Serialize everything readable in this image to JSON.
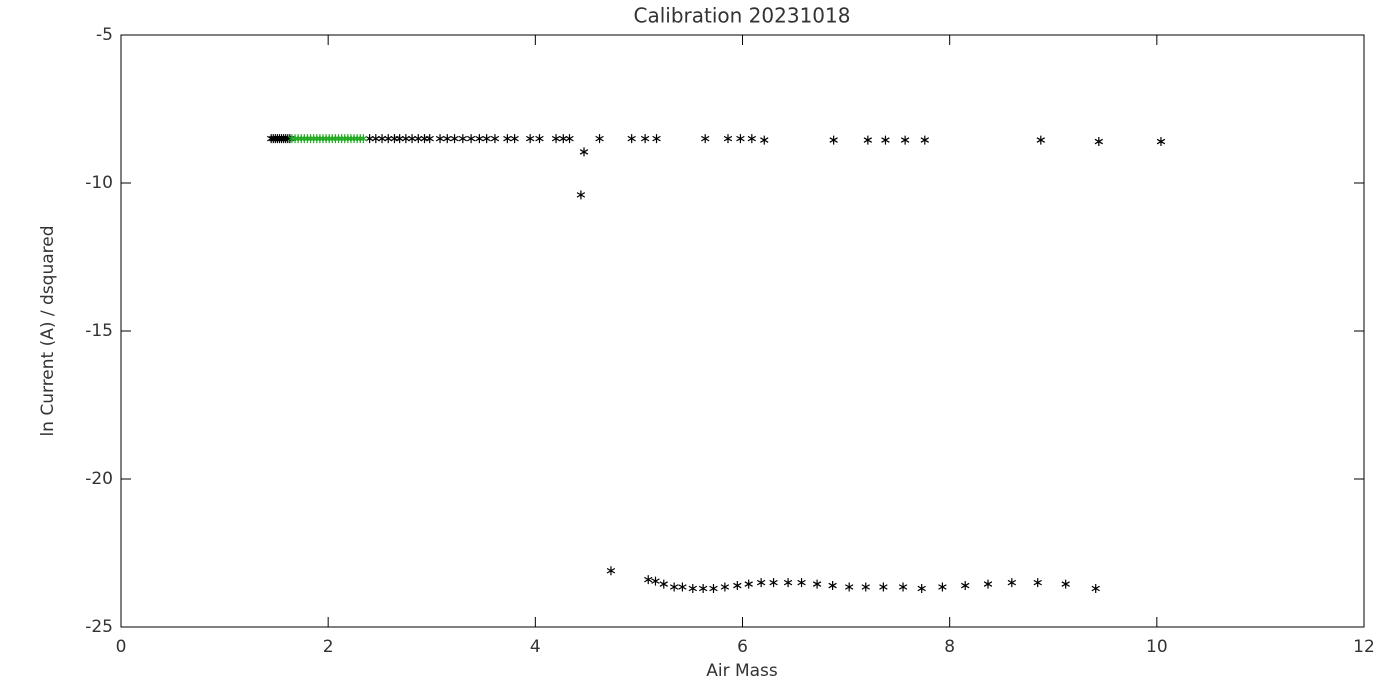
{
  "chart_data": {
    "type": "scatter",
    "title": "Calibration 20231018",
    "x_label": "Air Mass",
    "y_label": "ln Current (A) / dsquared",
    "xlim": [
      0,
      12
    ],
    "xticks": [
      0,
      2,
      4,
      6,
      8,
      10,
      12
    ],
    "ylim": [
      -25,
      -5
    ],
    "yticks": [
      -25,
      -20,
      -15,
      -10,
      -5
    ],
    "marker": "asterisk",
    "series": [
      {
        "color": "#000000",
        "x": [
          1.45,
          1.47,
          1.49,
          1.51,
          1.53,
          1.55,
          1.57,
          1.59,
          1.61,
          1.63,
          2.4,
          2.46,
          2.52,
          2.58,
          2.64,
          2.69,
          2.75,
          2.81,
          2.87,
          2.93,
          2.98,
          3.08,
          3.15,
          3.22,
          3.3,
          3.38,
          3.46,
          3.53,
          3.61,
          3.73,
          3.8,
          3.95,
          4.04,
          4.2,
          4.27,
          4.33,
          4.44,
          4.47,
          4.62,
          4.93,
          5.06,
          5.17,
          5.64,
          5.86,
          5.98,
          6.09,
          6.21,
          6.88,
          7.21,
          7.38,
          7.57,
          7.76,
          8.88,
          9.44,
          10.04
        ],
        "values": [
          -8.5,
          -8.5,
          -8.5,
          -8.5,
          -8.5,
          -8.5,
          -8.5,
          -8.5,
          -8.5,
          -8.5,
          -8.5,
          -8.5,
          -8.5,
          -8.5,
          -8.5,
          -8.5,
          -8.5,
          -8.5,
          -8.5,
          -8.5,
          -8.5,
          -8.5,
          -8.5,
          -8.5,
          -8.5,
          -8.5,
          -8.5,
          -8.5,
          -8.5,
          -8.5,
          -8.5,
          -8.5,
          -8.5,
          -8.5,
          -8.5,
          -8.5,
          -10.4,
          -8.95,
          -8.5,
          -8.5,
          -8.5,
          -8.5,
          -8.5,
          -8.5,
          -8.5,
          -8.5,
          -8.55,
          -8.55,
          -8.55,
          -8.55,
          -8.55,
          -8.55,
          -8.55,
          -8.6,
          -8.6
        ]
      },
      {
        "color": "#000000",
        "x": [
          4.73,
          5.09,
          5.16,
          5.24,
          5.34,
          5.42,
          5.52,
          5.62,
          5.72,
          5.83,
          5.95,
          6.06,
          6.18,
          6.3,
          6.44,
          6.57,
          6.72,
          6.87,
          7.03,
          7.19,
          7.36,
          7.55,
          7.73,
          7.93,
          8.15,
          8.37,
          8.6,
          8.85,
          9.12,
          9.41
        ],
        "values": [
          -23.1,
          -23.4,
          -23.45,
          -23.55,
          -23.65,
          -23.65,
          -23.7,
          -23.7,
          -23.7,
          -23.65,
          -23.6,
          -23.55,
          -23.5,
          -23.5,
          -23.5,
          -23.5,
          -23.55,
          -23.6,
          -23.65,
          -23.65,
          -23.65,
          -23.65,
          -23.7,
          -23.65,
          -23.6,
          -23.55,
          -23.5,
          -23.5,
          -23.55,
          -23.7
        ]
      },
      {
        "color": "#22aa22",
        "x": [
          1.65,
          1.68,
          1.71,
          1.74,
          1.77,
          1.8,
          1.83,
          1.86,
          1.89,
          1.92,
          1.95,
          1.98,
          2.01,
          2.04,
          2.07,
          2.1,
          2.13,
          2.16,
          2.19,
          2.22,
          2.25,
          2.28,
          2.31,
          2.34
        ],
        "values": [
          -8.5,
          -8.5,
          -8.5,
          -8.5,
          -8.5,
          -8.5,
          -8.5,
          -8.5,
          -8.5,
          -8.5,
          -8.5,
          -8.5,
          -8.5,
          -8.5,
          -8.5,
          -8.5,
          -8.5,
          -8.5,
          -8.5,
          -8.5,
          -8.5,
          -8.5,
          -8.5,
          -8.5
        ]
      }
    ]
  }
}
